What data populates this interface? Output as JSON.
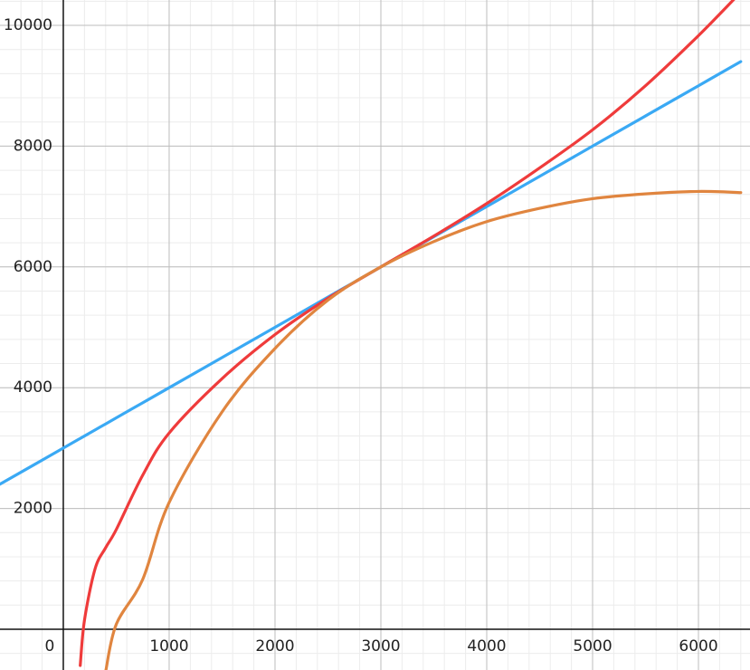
{
  "chart_data": {
    "type": "line",
    "x": [
      -600,
      0,
      160,
      200,
      300,
      400,
      500,
      750,
      1000,
      1500,
      2000,
      2500,
      3000,
      3500,
      4000,
      4500,
      5000,
      5500,
      6000,
      6400
    ],
    "series": [
      {
        "color": "#3aa9f4",
        "values": [
          2400,
          3000,
          3160,
          3200,
          3300,
          3400,
          3500,
          3750,
          4000,
          4500,
          5000,
          5500,
          6000,
          6500,
          7000,
          7500,
          8000,
          8500,
          9000,
          9400
        ]
      },
      {
        "color": "#ef3b3b",
        "values": [
          null,
          null,
          -600,
          150,
          1000,
          1350,
          1650,
          2550,
          3250,
          4150,
          4880,
          5480,
          6000,
          6510,
          7050,
          7640,
          8270,
          9000,
          9830,
          10550
        ]
      },
      {
        "color": "#e0853f",
        "values": [
          null,
          null,
          null,
          null,
          null,
          -700,
          80,
          825,
          2100,
          3600,
          4650,
          5450,
          6000,
          6420,
          6750,
          6970,
          7130,
          7210,
          7250,
          7230
        ]
      }
    ],
    "xlim": [
      -598,
      6487
    ],
    "ylim": [
      -675,
      10420
    ],
    "xticks": [
      0,
      1000,
      2000,
      3000,
      4000,
      5000,
      6000
    ],
    "yticks": [
      2000,
      4000,
      6000,
      8000,
      10000
    ],
    "grid": true
  }
}
